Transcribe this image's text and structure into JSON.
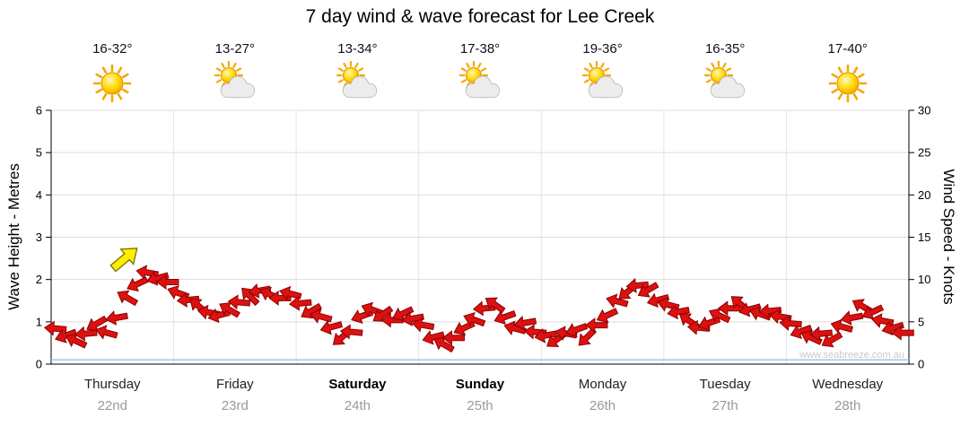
{
  "title": "7 day wind & wave forecast for Lee Creek",
  "watermark": "www.seabreeze.com.au",
  "y_left": {
    "label": "Wave Height - Metres",
    "ticks": [
      "0",
      "1",
      "2",
      "3",
      "4",
      "5",
      "6"
    ]
  },
  "y_right": {
    "label": "Wind Speed - Knots",
    "ticks": [
      "0",
      "5",
      "10",
      "15",
      "20",
      "25",
      "30"
    ]
  },
  "days": [
    {
      "name": "Thursday",
      "date": "22nd",
      "temp": "16-32°",
      "icon": "sunny",
      "weekend": false
    },
    {
      "name": "Friday",
      "date": "23rd",
      "temp": "13-27°",
      "icon": "partly-cloudy",
      "weekend": false
    },
    {
      "name": "Saturday",
      "date": "24th",
      "temp": "13-34°",
      "icon": "partly-cloudy",
      "weekend": true
    },
    {
      "name": "Sunday",
      "date": "25th",
      "temp": "17-38°",
      "icon": "partly-cloudy",
      "weekend": true
    },
    {
      "name": "Monday",
      "date": "26th",
      "temp": "19-36°",
      "icon": "partly-cloudy",
      "weekend": false
    },
    {
      "name": "Tuesday",
      "date": "27th",
      "temp": "16-35°",
      "icon": "partly-cloudy",
      "weekend": false
    },
    {
      "name": "Wednesday",
      "date": "28th",
      "temp": "17-40°",
      "icon": "sunny",
      "weekend": false
    }
  ],
  "chart_data": {
    "type": "scatter",
    "description": "Wind direction arrows plotted at wind-speed height (right axis, knots) every ~2 hours over 7 days; flat light-blue wave-height line near 0 m (left axis).",
    "x_axis": "Thursday 22nd through Wednesday 28th",
    "left_ylim": [
      0,
      6
    ],
    "right_ylim": [
      0,
      30
    ],
    "grid": true,
    "wave_height_m": 0.1,
    "colors": {
      "arrow": "#dd1111",
      "arrow_outline": "#8b0000",
      "wave_line": "#9ccbe0",
      "grid": "#dddddd"
    },
    "wind_knots": [
      4.2,
      3.4,
      2.7,
      3.6,
      4.8,
      3.7,
      5.5,
      7.8,
      9.5,
      10.8,
      10.2,
      9.7,
      8.4,
      7.6,
      6.8,
      6.1,
      5.8,
      6.4,
      7.3,
      8.0,
      8.7,
      8.2,
      7.8,
      8.3,
      7.2,
      6.3,
      5.6,
      4.4,
      3.2,
      3.8,
      5.7,
      6.4,
      5.9,
      5.2,
      6.0,
      5.4,
      4.6,
      3.2,
      2.3,
      3.1,
      4.3,
      5.2,
      6.6,
      7.0,
      5.6,
      4.2,
      4.9,
      3.8,
      3.4,
      2.9,
      3.6,
      4.1,
      3.2,
      4.6,
      5.8,
      7.4,
      8.6,
      9.3,
      8.8,
      7.6,
      7.0,
      6.2,
      5.1,
      4.3,
      4.9,
      5.7,
      6.6,
      7.1,
      6.5,
      5.9,
      6.3,
      5.6,
      4.8,
      3.9,
      3.1,
      3.6,
      2.9,
      4.4,
      5.5,
      6.8,
      6.2,
      5.1,
      4.3,
      3.7
    ],
    "wind_dir_deg": [
      185,
      160,
      205,
      175,
      150,
      195,
      170,
      210,
      155,
      190,
      165,
      180,
      200,
      175,
      220,
      190,
      165,
      210,
      185,
      225,
      170,
      205,
      180,
      195,
      175,
      150,
      195,
      165,
      140,
      185,
      160,
      200,
      145,
      180,
      155,
      170,
      190,
      165,
      210,
      180,
      155,
      200,
      175,
      215,
      160,
      195,
      170,
      185,
      170,
      145,
      190,
      160,
      135,
      180,
      155,
      195,
      140,
      175,
      150,
      165,
      195,
      170,
      215,
      185,
      160,
      205,
      180,
      220,
      165,
      200,
      175,
      190,
      185,
      160,
      205,
      175,
      150,
      195,
      170,
      210,
      155,
      190,
      165,
      180
    ],
    "dir_convention": "degrees clockwise from pointing-right (east)",
    "highlight": {
      "day_fraction": 0.085,
      "knots": 12.4,
      "dir_deg": -40,
      "color": "#ffee00",
      "outline": "#7d6e00"
    }
  }
}
